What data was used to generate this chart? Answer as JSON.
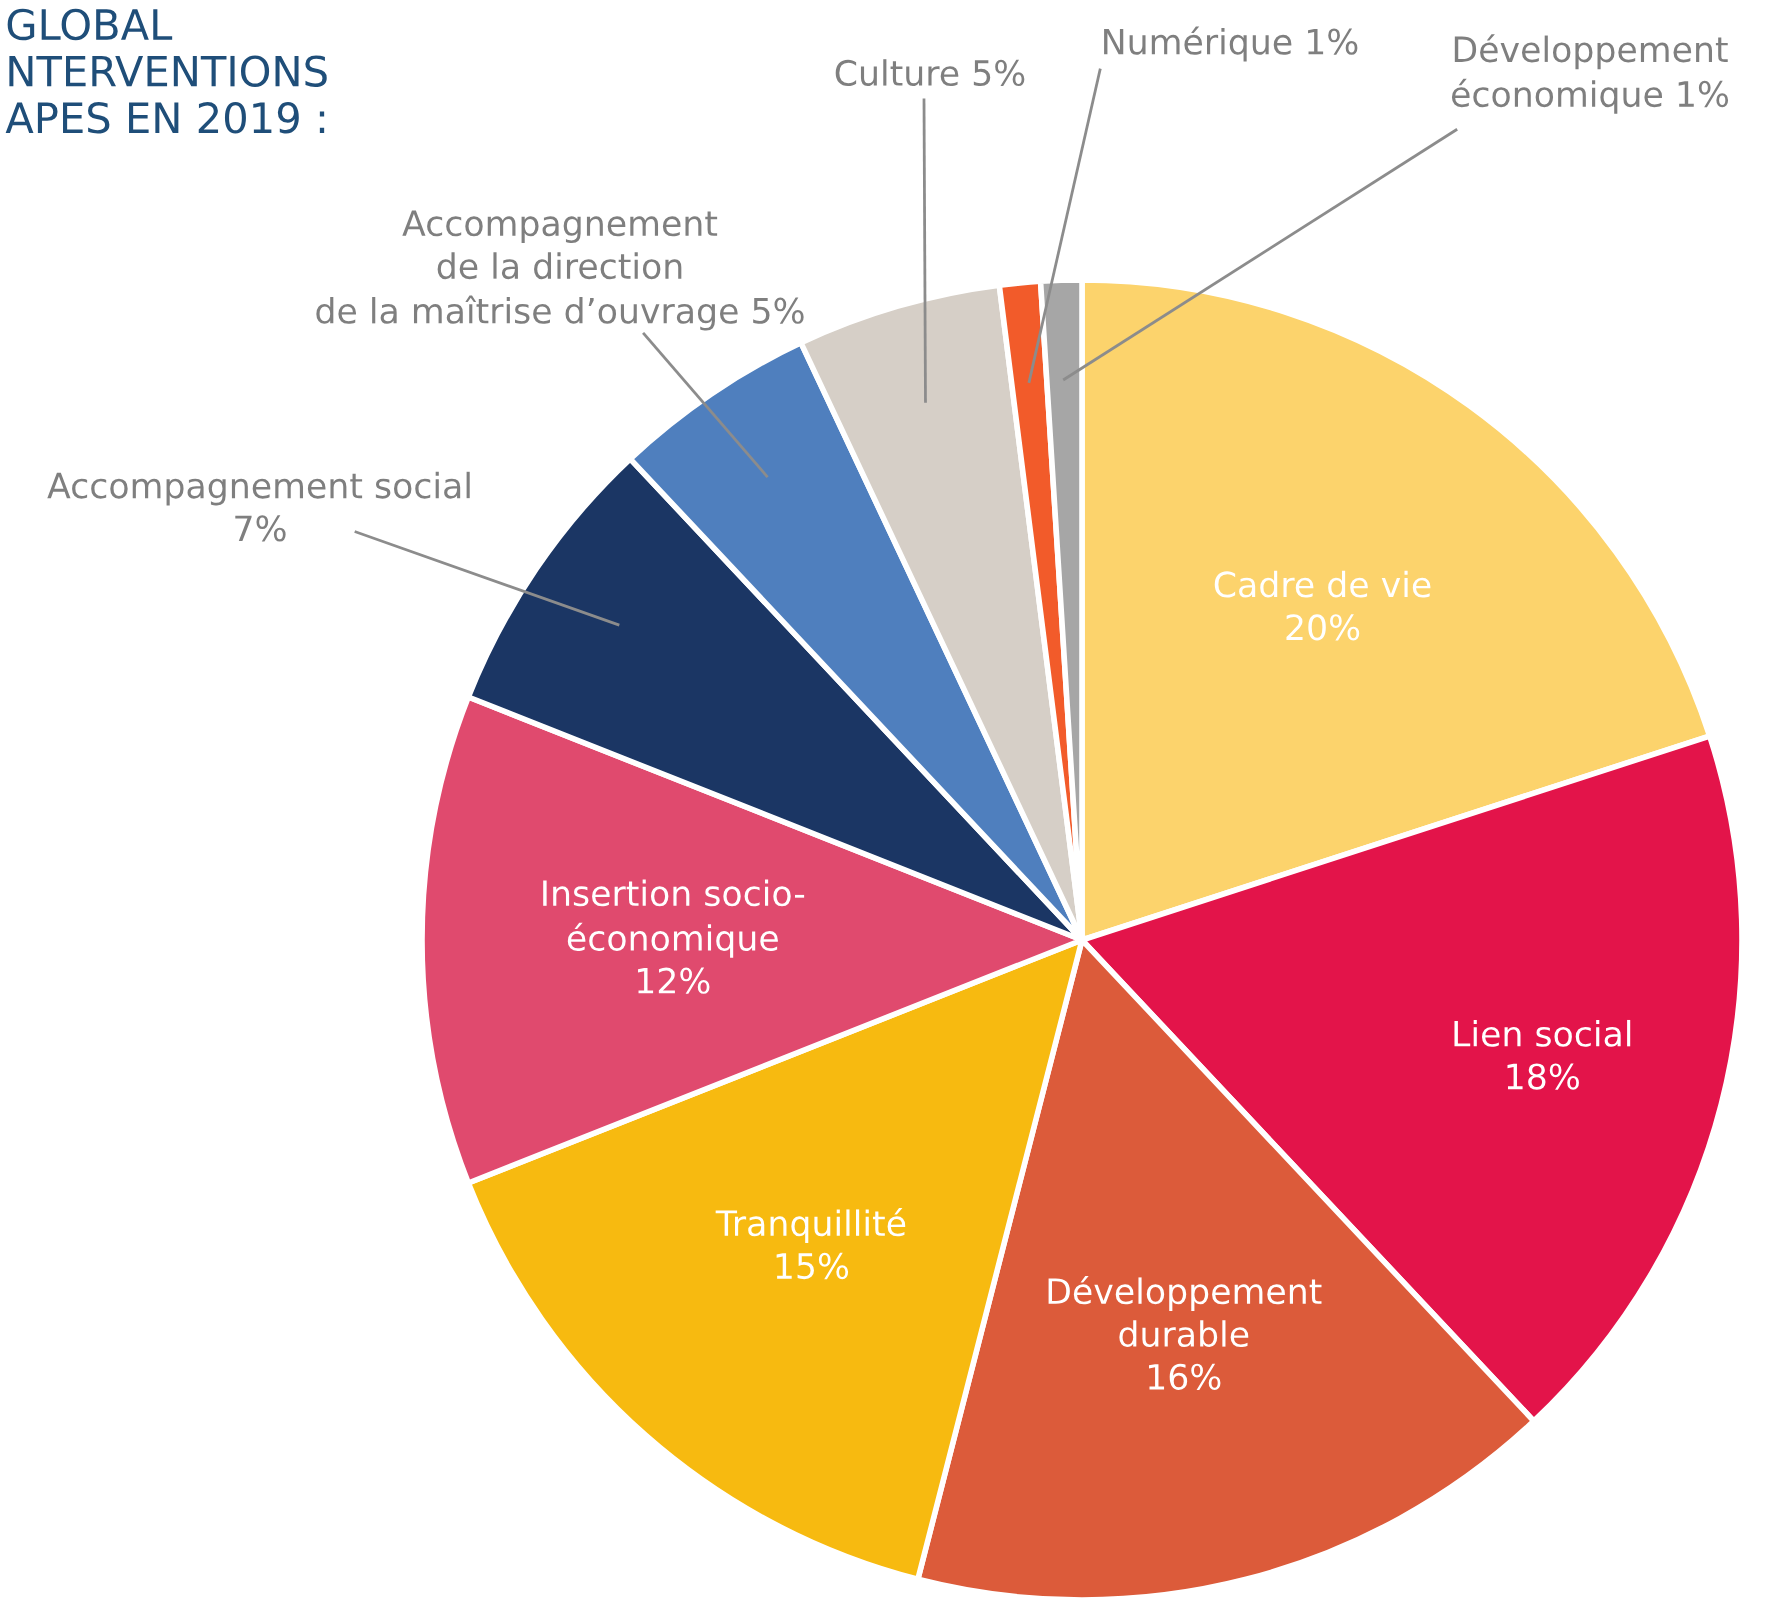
{
  "chart_data": {
    "type": "pie",
    "title": "GLOBAL\nNTERVENTIONS\nAPES EN 2019 :",
    "categories": [
      "Cadre de vie",
      "Lien social",
      "Développement\ndurable",
      "Tranquillité",
      "Insertion socio-\néconomique",
      "Accompagnement social",
      "Accompagnement\nde la direction\nde la maîtrise d’ouvrage",
      "Culture",
      "Numérique",
      "Développement\néconomique"
    ],
    "values": [
      20,
      18,
      16,
      15,
      12,
      7,
      5,
      5,
      1,
      1
    ],
    "colors": [
      "#fcd36c",
      "#e3144a",
      "#dc5b3a",
      "#f7ba10",
      "#e04a6e",
      "#1b3664",
      "#4f7fbe",
      "#d6cfc7",
      "#f25b2a",
      "#a6a6a6"
    ],
    "value_labels": [
      "20%",
      "18%",
      "16%",
      "15%",
      "12%",
      "7%",
      "5%",
      "5%",
      "1%",
      "1%"
    ],
    "legend": false
  }
}
